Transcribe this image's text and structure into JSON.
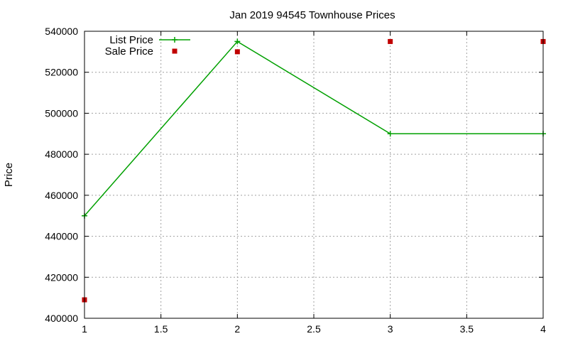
{
  "chart_data": {
    "type": "line",
    "title": "Jan 2019 94545 Townhouse Prices",
    "xlabel": "",
    "ylabel": "Price",
    "xlim": [
      1,
      4
    ],
    "ylim": [
      400000,
      540000
    ],
    "x_ticks": [
      1,
      1.5,
      2,
      2.5,
      3,
      3.5,
      4
    ],
    "y_ticks": [
      400000,
      420000,
      440000,
      460000,
      480000,
      500000,
      520000,
      540000
    ],
    "grid": true,
    "legend_position": "top-left",
    "series": [
      {
        "name": "List Price",
        "style": "line+plus",
        "color": "#00a000",
        "x": [
          1,
          2,
          3,
          4
        ],
        "values": [
          450000,
          535000,
          490000,
          490000
        ]
      },
      {
        "name": "Sale Price",
        "style": "square",
        "color": "#c00000",
        "x": [
          1,
          2,
          3,
          4
        ],
        "values": [
          409000,
          530000,
          535000,
          535000
        ]
      }
    ]
  }
}
